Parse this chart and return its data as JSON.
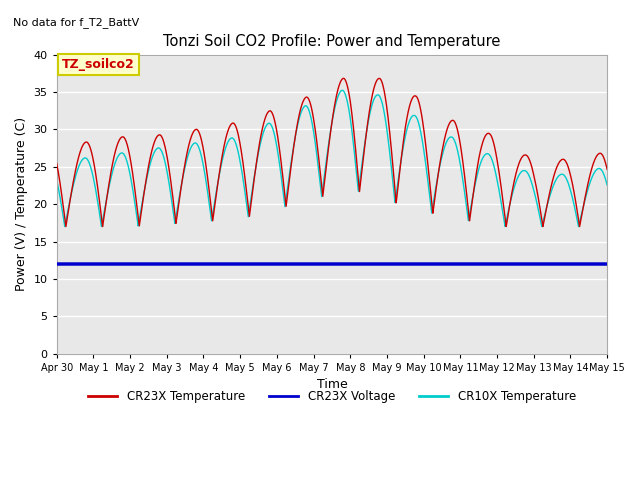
{
  "title": "Tonzi Soil CO2 Profile: Power and Temperature",
  "subtitle": "No data for f_T2_BattV",
  "xlabel": "Time",
  "ylabel": "Power (V) / Temperature (C)",
  "ylim": [
    0,
    40
  ],
  "yticks": [
    0,
    5,
    10,
    15,
    20,
    25,
    30,
    35,
    40
  ],
  "legend_entries": [
    "CR23X Temperature",
    "CR23X Voltage",
    "CR10X Temperature"
  ],
  "legend_colors": [
    "#cc0000",
    "#0000cc",
    "#00cccc"
  ],
  "annotation_text": "TZ_soilco2",
  "annotation_box_color": "#ffffcc",
  "annotation_box_edge": "#cccc00",
  "background_color": "#e8e8e8",
  "figure_background": "#ffffff",
  "grid_color": "#ffffff",
  "voltage_value": 12.0,
  "xtick_labels": [
    "Apr 30",
    "May 1",
    "May 2",
    "May 3",
    "May 4",
    "May 5",
    "May 6",
    "May 7",
    "May 8",
    "May 9",
    "May 10",
    "May 11",
    "May 12",
    "May 13",
    "May 14",
    "May 15"
  ]
}
